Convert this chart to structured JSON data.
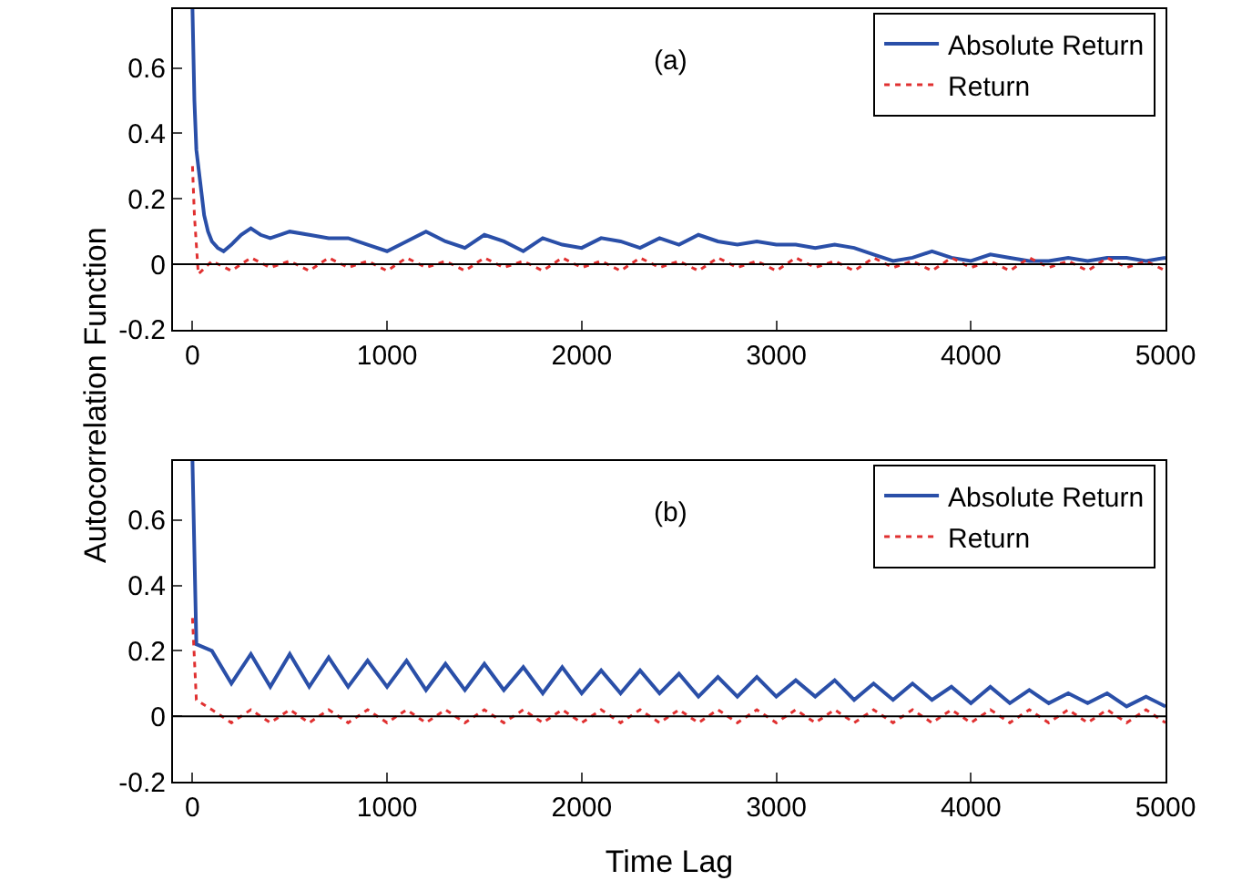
{
  "chart_data": [
    {
      "type": "line",
      "ylabel": "Autocorrelation Function",
      "annotations": [
        "(a)"
      ],
      "xlim": [
        -100,
        5000
      ],
      "ylim": [
        -0.2,
        0.78
      ],
      "xticks": [
        0,
        1000,
        2000,
        3000,
        4000,
        5000
      ],
      "yticks": [
        -0.2,
        0,
        0.2,
        0.4,
        0.6
      ],
      "legend": "top right",
      "ref_lines": [
        {
          "axis": "y",
          "value": 0,
          "color": "#000000"
        }
      ],
      "series": [
        {
          "name": "Absolute Return",
          "color": "#2a4fa8",
          "line_style": "solid",
          "x": [
            0,
            10,
            20,
            40,
            60,
            80,
            100,
            130,
            160,
            200,
            250,
            300,
            350,
            400,
            500,
            600,
            700,
            800,
            900,
            1000,
            1100,
            1200,
            1300,
            1400,
            1500,
            1600,
            1700,
            1800,
            1900,
            2000,
            2100,
            2200,
            2300,
            2400,
            2500,
            2600,
            2700,
            2800,
            2900,
            3000,
            3100,
            3200,
            3300,
            3400,
            3500,
            3600,
            3700,
            3800,
            3900,
            4000,
            4100,
            4200,
            4300,
            4400,
            4500,
            4600,
            4700,
            4800,
            4900,
            5000
          ],
          "values": [
            0.78,
            0.5,
            0.35,
            0.25,
            0.15,
            0.1,
            0.07,
            0.05,
            0.04,
            0.06,
            0.09,
            0.11,
            0.09,
            0.08,
            0.1,
            0.09,
            0.08,
            0.08,
            0.06,
            0.04,
            0.07,
            0.1,
            0.07,
            0.05,
            0.09,
            0.07,
            0.04,
            0.08,
            0.06,
            0.05,
            0.08,
            0.07,
            0.05,
            0.08,
            0.06,
            0.09,
            0.07,
            0.06,
            0.07,
            0.06,
            0.06,
            0.05,
            0.06,
            0.05,
            0.03,
            0.01,
            0.02,
            0.04,
            0.02,
            0.01,
            0.03,
            0.02,
            0.01,
            0.01,
            0.02,
            0.01,
            0.02,
            0.02,
            0.01,
            0.02
          ]
        },
        {
          "name": "Return",
          "color": "#e03030",
          "line_style": "dotted",
          "x": [
            0,
            10,
            30,
            100,
            200,
            300,
            400,
            500,
            600,
            700,
            800,
            900,
            1000,
            1100,
            1200,
            1300,
            1400,
            1500,
            1600,
            1700,
            1800,
            1900,
            2000,
            2100,
            2200,
            2300,
            2400,
            2500,
            2600,
            2700,
            2800,
            2900,
            3000,
            3100,
            3200,
            3300,
            3400,
            3500,
            3600,
            3700,
            3800,
            3900,
            4000,
            4100,
            4200,
            4300,
            4400,
            4500,
            4600,
            4700,
            4800,
            4900,
            5000
          ],
          "values": [
            0.3,
            0.15,
            -0.03,
            0.01,
            -0.02,
            0.02,
            -0.01,
            0.01,
            -0.02,
            0.02,
            -0.01,
            0.01,
            -0.02,
            0.02,
            -0.01,
            0.01,
            -0.02,
            0.02,
            -0.01,
            0.01,
            -0.02,
            0.02,
            -0.01,
            0.01,
            -0.02,
            0.02,
            -0.01,
            0.01,
            -0.02,
            0.02,
            -0.01,
            0.01,
            -0.02,
            0.02,
            -0.01,
            0.01,
            -0.02,
            0.02,
            -0.01,
            0.01,
            -0.02,
            0.02,
            -0.01,
            0.01,
            -0.02,
            0.02,
            -0.01,
            0.01,
            -0.02,
            0.02,
            -0.01,
            0.01,
            -0.02
          ]
        }
      ]
    },
    {
      "type": "line",
      "xlabel": "Time Lag",
      "annotations": [
        "(b)"
      ],
      "xlim": [
        -100,
        5000
      ],
      "ylim": [
        -0.2,
        0.78
      ],
      "xticks": [
        0,
        1000,
        2000,
        3000,
        4000,
        5000
      ],
      "yticks": [
        -0.2,
        0,
        0.2,
        0.4,
        0.6
      ],
      "legend": "top right",
      "ref_lines": [
        {
          "axis": "y",
          "value": 0,
          "color": "#000000"
        }
      ],
      "series": [
        {
          "name": "Absolute Return",
          "color": "#2a4fa8",
          "line_style": "solid",
          "x": [
            0,
            20,
            100,
            200,
            300,
            400,
            500,
            600,
            700,
            800,
            900,
            1000,
            1100,
            1200,
            1300,
            1400,
            1500,
            1600,
            1700,
            1800,
            1900,
            2000,
            2100,
            2200,
            2300,
            2400,
            2500,
            2600,
            2700,
            2800,
            2900,
            3000,
            3100,
            3200,
            3300,
            3400,
            3500,
            3600,
            3700,
            3800,
            3900,
            4000,
            4100,
            4200,
            4300,
            4400,
            4500,
            4600,
            4700,
            4800,
            4900,
            5000
          ],
          "values": [
            0.78,
            0.22,
            0.2,
            0.1,
            0.19,
            0.09,
            0.19,
            0.09,
            0.18,
            0.09,
            0.17,
            0.09,
            0.17,
            0.08,
            0.16,
            0.08,
            0.16,
            0.08,
            0.15,
            0.07,
            0.15,
            0.07,
            0.14,
            0.07,
            0.14,
            0.07,
            0.13,
            0.06,
            0.12,
            0.06,
            0.12,
            0.06,
            0.11,
            0.06,
            0.11,
            0.05,
            0.1,
            0.05,
            0.1,
            0.05,
            0.09,
            0.04,
            0.09,
            0.04,
            0.08,
            0.04,
            0.07,
            0.04,
            0.07,
            0.03,
            0.06,
            0.03
          ]
        },
        {
          "name": "Return",
          "color": "#e03030",
          "line_style": "dotted",
          "x": [
            0,
            20,
            100,
            200,
            300,
            400,
            500,
            600,
            700,
            800,
            900,
            1000,
            1100,
            1200,
            1300,
            1400,
            1500,
            1600,
            1700,
            1800,
            1900,
            2000,
            2100,
            2200,
            2300,
            2400,
            2500,
            2600,
            2700,
            2800,
            2900,
            3000,
            3100,
            3200,
            3300,
            3400,
            3500,
            3600,
            3700,
            3800,
            3900,
            4000,
            4100,
            4200,
            4300,
            4400,
            4500,
            4600,
            4700,
            4800,
            4900,
            5000
          ],
          "values": [
            0.3,
            0.05,
            0.02,
            -0.02,
            0.02,
            -0.02,
            0.02,
            -0.02,
            0.02,
            -0.02,
            0.02,
            -0.02,
            0.02,
            -0.02,
            0.02,
            -0.02,
            0.02,
            -0.02,
            0.02,
            -0.02,
            0.02,
            -0.02,
            0.02,
            -0.02,
            0.02,
            -0.02,
            0.02,
            -0.02,
            0.02,
            -0.02,
            0.02,
            -0.02,
            0.02,
            -0.02,
            0.02,
            -0.02,
            0.02,
            -0.02,
            0.02,
            -0.02,
            0.02,
            -0.02,
            0.02,
            -0.02,
            0.02,
            -0.02,
            0.02,
            -0.02,
            0.02,
            -0.02,
            0.02,
            -0.02
          ]
        }
      ]
    }
  ]
}
